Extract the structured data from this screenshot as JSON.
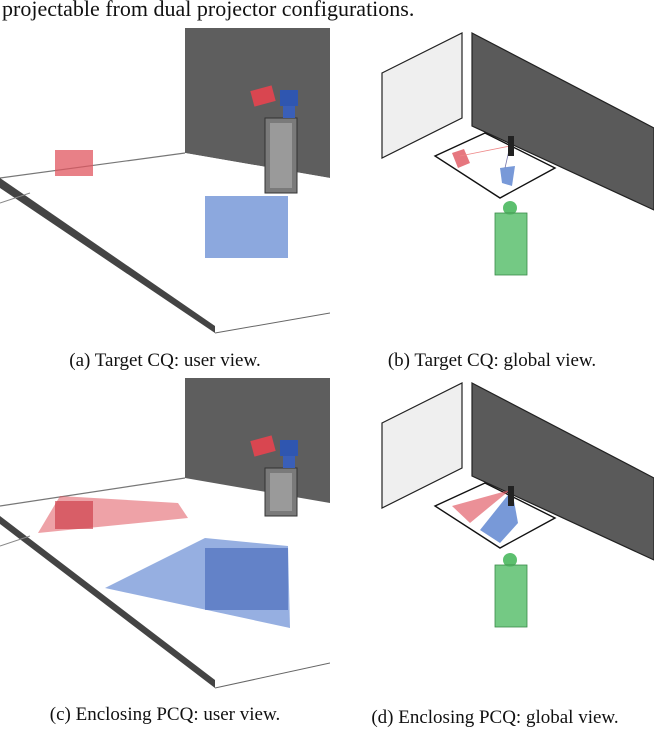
{
  "header_text": "projectable from dual projector configurations.",
  "captions": {
    "a": "(a) Target CQ: user view.",
    "b": "(b) Target CQ: global view.",
    "c": "(c) Enclosing PCQ: user view.",
    "d": "(d) Enclosing PCQ: global view."
  },
  "colors": {
    "red_projector": "#e0555f",
    "blue_projector": "#3f6ec8",
    "user_figure": "#5cbf6e",
    "wall_dark": "#5a5a5a",
    "wall_light": "#ececec"
  }
}
